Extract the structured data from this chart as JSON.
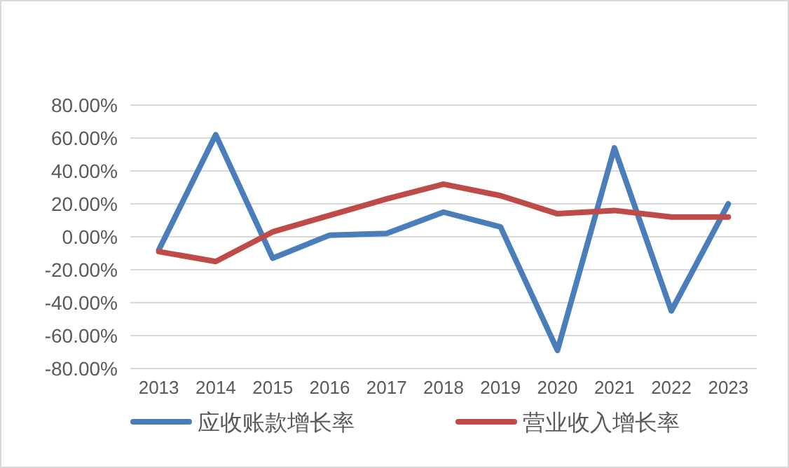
{
  "chart_data": {
    "type": "line",
    "categories": [
      "2013",
      "2014",
      "2015",
      "2016",
      "2017",
      "2018",
      "2019",
      "2020",
      "2021",
      "2022",
      "2023"
    ],
    "series": [
      {
        "name": "应收账款增长率",
        "color": "#4a7ebb",
        "values": [
          -8,
          62,
          -13,
          1,
          2,
          15,
          6,
          -69,
          54,
          -45,
          20
        ]
      },
      {
        "name": "营业收入增长率",
        "color": "#be4b48",
        "values": [
          -9,
          -15,
          3,
          13,
          23,
          32,
          25,
          14,
          16,
          12,
          12
        ]
      }
    ],
    "ylim": [
      -80,
      80
    ],
    "yticks": [
      {
        "value": 80,
        "label": "80.00%"
      },
      {
        "value": 60,
        "label": "60.00%"
      },
      {
        "value": 40,
        "label": "40.00%"
      },
      {
        "value": 20,
        "label": "20.00%"
      },
      {
        "value": 0,
        "label": "0.00%"
      },
      {
        "value": -20,
        "label": "-20.00%"
      },
      {
        "value": -40,
        "label": "-40.00%"
      },
      {
        "value": -60,
        "label": "-60.00%"
      },
      {
        "value": -80,
        "label": "-80.00%"
      }
    ],
    "grid": "y",
    "legend": "bottom",
    "marker": "none",
    "line_style": "solid"
  }
}
